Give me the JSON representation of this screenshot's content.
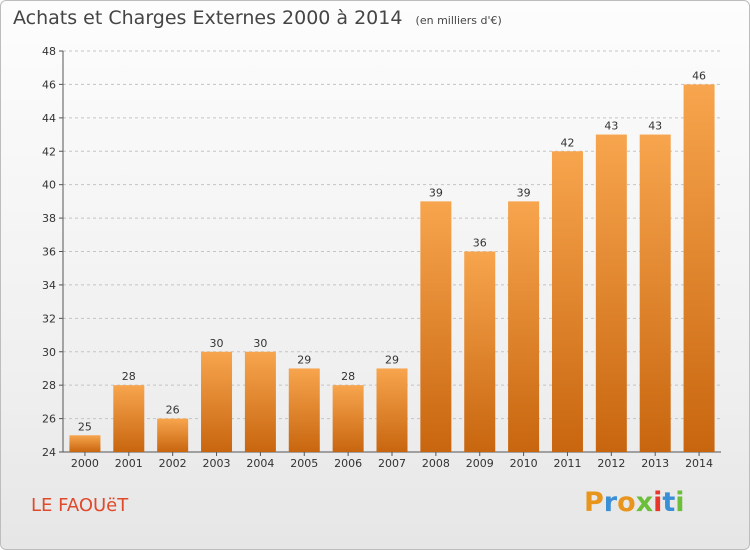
{
  "header": {
    "title": "Achats et Charges Externes 2000 à 2014",
    "unit": "(en milliers d'€)"
  },
  "footer": {
    "commune": "LE FAOUëT",
    "brand_letters": [
      "P",
      "r",
      "o",
      "x",
      "i",
      "t",
      "i"
    ],
    "brand_colors": [
      "#e8951e",
      "#3a8fd6",
      "#e8951e",
      "#6cbf3a",
      "#e8362c",
      "#3a8fd6",
      "#6cbf3a"
    ]
  },
  "chart_data": {
    "type": "bar",
    "title": "Achats et Charges Externes 2000 à 2014",
    "subtitle": "(en milliers d'€)",
    "categories": [
      "2000",
      "2001",
      "2002",
      "2003",
      "2004",
      "2005",
      "2006",
      "2007",
      "2008",
      "2009",
      "2010",
      "2011",
      "2012",
      "2013",
      "2014"
    ],
    "values": [
      25,
      28,
      26,
      30,
      30,
      29,
      28,
      29,
      39,
      36,
      39,
      42,
      43,
      43,
      46
    ],
    "ylim": [
      24,
      48
    ],
    "yticks": [
      24,
      26,
      28,
      30,
      32,
      34,
      36,
      38,
      40,
      42,
      44,
      46,
      48
    ],
    "grid": "horizontal-dashed",
    "bar_color_top": "#f7a54e",
    "bar_color_bottom": "#c8660f"
  }
}
